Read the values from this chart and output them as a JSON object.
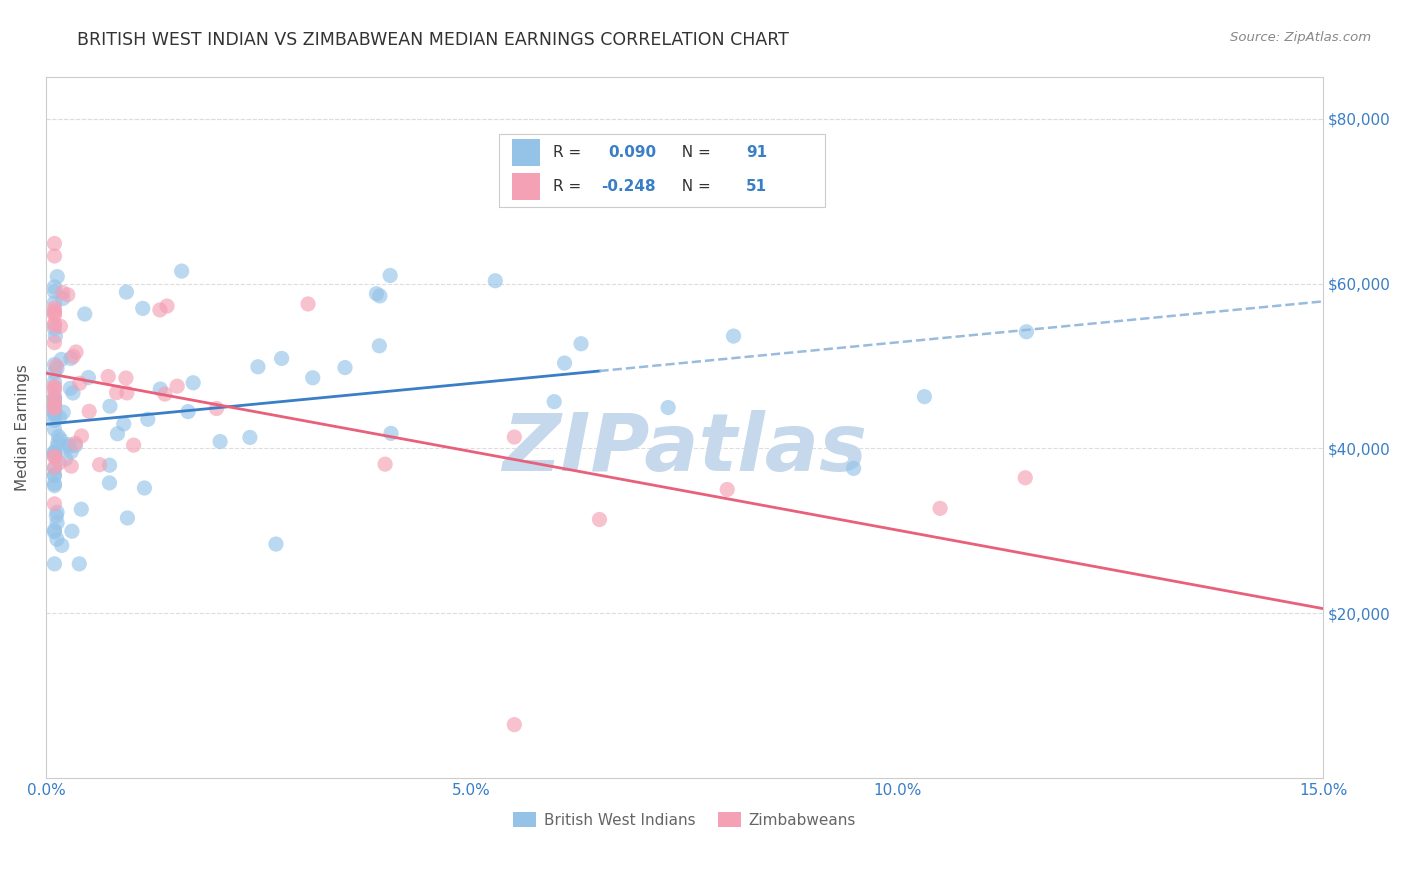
{
  "title": "BRITISH WEST INDIAN VS ZIMBABWEAN MEDIAN EARNINGS CORRELATION CHART",
  "source": "Source: ZipAtlas.com",
  "ylabel": "Median Earnings",
  "xlim": [
    0.0,
    0.15
  ],
  "ylim": [
    0,
    85000
  ],
  "yticks": [
    20000,
    40000,
    60000,
    80000
  ],
  "ytick_labels": [
    "$20,000",
    "$40,000",
    "$60,000",
    "$80,000"
  ],
  "xticks": [
    0.0,
    0.05,
    0.1,
    0.15
  ],
  "xtick_labels": [
    "0.0%",
    "5.0%",
    "10.0%",
    "15.0%"
  ],
  "blue_scatter_color": "#95C3E8",
  "pink_scatter_color": "#F4A0B5",
  "blue_line_color": "#3A7EC6",
  "pink_line_color": "#E8607A",
  "dashed_line_color": "#99BBDD",
  "watermark_color": "#C5D8EC",
  "watermark_text": "ZIPatlas",
  "r_blue": 0.09,
  "n_blue": 91,
  "r_pink": -0.248,
  "n_pink": 51,
  "bg_color": "#FFFFFF",
  "grid_color": "#DDDDDD",
  "axis_color": "#CCCCCC",
  "title_color": "#333333",
  "source_color": "#888888",
  "tick_color": "#3A7EC6",
  "ylabel_color": "#555555",
  "legend_text_color": "#333333",
  "legend_num_color": "#3A7EC6",
  "bottom_legend_color": "#666666",
  "scatter_size": 120,
  "scatter_alpha": 0.65
}
